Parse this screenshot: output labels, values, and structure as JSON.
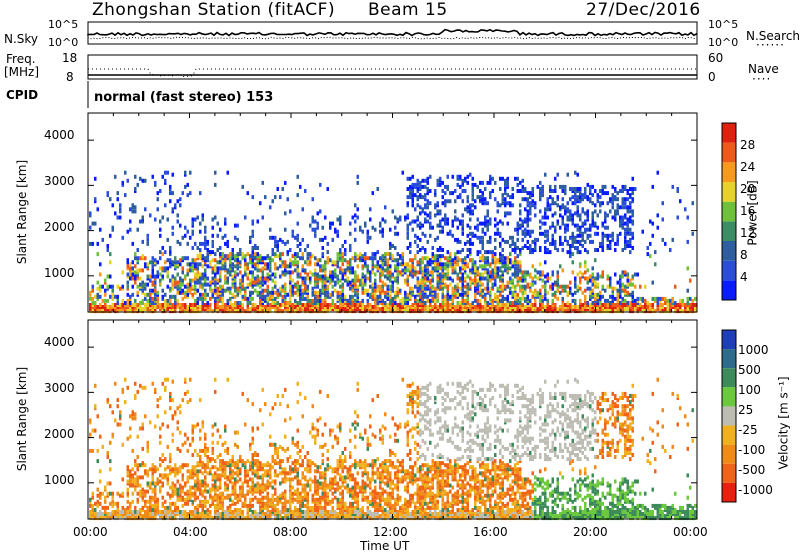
{
  "header": {
    "station": "Zhongshan Station (fitACF)",
    "beam": "Beam 15",
    "date": "27/Dec/2016"
  },
  "noise_panel": {
    "left_label": "N.Sky",
    "right_label": "N.Search",
    "left_ticks": [
      "10^5",
      "10^0"
    ],
    "right_ticks": [
      "10^5",
      "10^0"
    ]
  },
  "freq_panel": {
    "left_label_1": "Freq.",
    "left_label_2": "[MHz]",
    "right_label": "Nave",
    "left_ticks": [
      "18",
      "8"
    ],
    "right_ticks": [
      "60",
      "0"
    ]
  },
  "cpid": {
    "label": "CPID",
    "text": "normal (fast stereo) 153"
  },
  "chart_data": [
    {
      "type": "heatmap",
      "name": "power",
      "ylabel": "Slant Range [km]",
      "colorbar_label": "Power [dB]",
      "colorbar_ticks": [
        "28",
        "24",
        "20",
        "16",
        "12",
        "8",
        "4"
      ],
      "ylim": [
        200,
        4600
      ],
      "yticks": [
        "4000",
        "3000",
        "2000",
        "1000"
      ],
      "colors": [
        "#0a1cff",
        "#2a4fd6",
        "#2e5e9e",
        "#3c8c66",
        "#6fc03a",
        "#e6d22c",
        "#f59a1e",
        "#ee5a18",
        "#e02010"
      ]
    },
    {
      "type": "heatmap",
      "name": "velocity",
      "ylabel": "Slant Range [km]",
      "colorbar_label": "Velocity [m s⁻¹]",
      "colorbar_ticks": [
        "1000",
        "500",
        "100",
        "25",
        "-25",
        "-100",
        "-500",
        "-1000"
      ],
      "ylim": [
        200,
        4600
      ],
      "yticks": [
        "4000",
        "3000",
        "2000",
        "1000"
      ],
      "colors": [
        "#1e3fb8",
        "#2e6b8a",
        "#3d8a5a",
        "#6cc83c",
        "#bdbdb3",
        "#f0b020",
        "#f08a18",
        "#ee6418",
        "#e82010"
      ]
    }
  ],
  "xaxis": {
    "label": "Time UT",
    "ticks": [
      "00:00",
      "04:00",
      "08:00",
      "12:00",
      "16:00",
      "20:00",
      "00:00"
    ]
  }
}
